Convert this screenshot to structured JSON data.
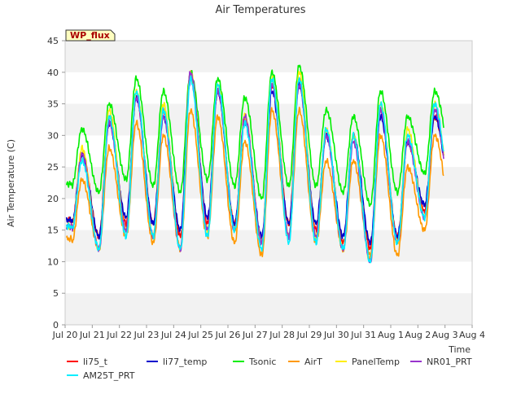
{
  "chart_data": {
    "type": "line",
    "title": "Air Temperatures",
    "xlabel": "Time",
    "ylabel": "Air Temperature (C)",
    "badge": "WP_flux",
    "ylim": [
      0,
      45
    ],
    "yticks": [
      0,
      5,
      10,
      15,
      20,
      25,
      30,
      35,
      40,
      45
    ],
    "xlim": [
      0,
      15
    ],
    "xticks": [
      {
        "pos": 0,
        "label": "Jul 20"
      },
      {
        "pos": 1,
        "label": "Jul 21"
      },
      {
        "pos": 2,
        "label": "Jul 22"
      },
      {
        "pos": 3,
        "label": "Jul 23"
      },
      {
        "pos": 4,
        "label": "Jul 24"
      },
      {
        "pos": 5,
        "label": "Jul 25"
      },
      {
        "pos": 6,
        "label": "Jul 26"
      },
      {
        "pos": 7,
        "label": "Jul 27"
      },
      {
        "pos": 8,
        "label": "Jul 28"
      },
      {
        "pos": 9,
        "label": "Jul 29"
      },
      {
        "pos": 10,
        "label": "Jul 30"
      },
      {
        "pos": 11,
        "label": "Jul 31"
      },
      {
        "pos": 12,
        "label": "Aug 1"
      },
      {
        "pos": 13,
        "label": "Aug 2"
      },
      {
        "pos": 14,
        "label": "Aug 3"
      },
      {
        "pos": 15,
        "label": "Aug 4"
      }
    ],
    "grid": "horizontal bands",
    "legend_position": "bottom",
    "days": [
      "Jul 20",
      "Jul 21",
      "Jul 22",
      "Jul 23",
      "Jul 24",
      "Jul 25",
      "Jul 26",
      "Jul 27",
      "Jul 28",
      "Jul 29",
      "Jul 30",
      "Jul 31",
      "Aug 1",
      "Aug 2",
      "Aug 3"
    ],
    "series": [
      {
        "name": "li75_t",
        "color": "#ff0000",
        "daily_max": [
          27,
          33,
          36,
          34,
          40,
          37,
          33,
          38,
          39,
          30,
          30,
          34,
          29,
          33
        ],
        "daily_min": [
          16,
          14,
          16,
          16,
          14,
          16,
          16,
          13,
          16,
          15,
          13,
          12,
          14,
          18,
          21
        ]
      },
      {
        "name": "li77_temp",
        "color": "#0000cc",
        "daily_max": [
          27,
          32,
          36,
          33,
          39,
          37,
          32,
          37,
          38,
          30,
          30,
          33,
          29,
          33
        ],
        "daily_min": [
          16,
          14,
          17,
          16,
          15,
          17,
          16,
          14,
          16,
          16,
          14,
          13,
          14,
          19,
          21
        ]
      },
      {
        "name": "Tsonic",
        "color": "#00ee00",
        "daily_max": [
          31,
          35,
          39,
          37,
          40,
          39,
          36,
          40,
          41,
          34,
          33,
          37,
          33,
          37
        ],
        "daily_min": [
          22,
          21,
          23,
          22,
          21,
          23,
          22,
          20,
          22,
          22,
          21,
          19,
          21,
          24,
          27
        ]
      },
      {
        "name": "AirT",
        "color": "#ff9900",
        "daily_max": [
          23,
          28,
          32,
          30,
          34,
          33,
          29,
          34,
          34,
          26,
          26,
          30,
          25,
          30
        ],
        "daily_min": [
          13,
          12,
          14,
          13,
          12,
          14,
          13,
          11,
          14,
          13,
          12,
          11,
          11,
          15,
          18
        ]
      },
      {
        "name": "PanelTemp",
        "color": "#ffee00",
        "daily_max": [
          28,
          34,
          37,
          35,
          40,
          38,
          33,
          39,
          40,
          31,
          30,
          35,
          31,
          35
        ],
        "daily_min": [
          15,
          12,
          15,
          14,
          12,
          15,
          15,
          13,
          14,
          14,
          12,
          10,
          13,
          17,
          20
        ]
      },
      {
        "name": "NR01_PRT",
        "color": "#9933cc",
        "daily_max": [
          27,
          32,
          36,
          33,
          40,
          37,
          33,
          38,
          38,
          30,
          29,
          34,
          29,
          34
        ],
        "daily_min": [
          15,
          12,
          15,
          14,
          12,
          15,
          15,
          13,
          14,
          14,
          12,
          10,
          13,
          17,
          20
        ]
      },
      {
        "name": "AM25T_PRT",
        "color": "#00eeff",
        "daily_max": [
          26,
          33,
          37,
          34,
          39,
          38,
          32,
          39,
          39,
          31,
          30,
          35,
          30,
          35
        ],
        "daily_min": [
          15,
          12,
          14,
          14,
          12,
          14,
          15,
          12,
          13,
          13,
          12,
          10,
          13,
          17,
          20
        ]
      }
    ]
  }
}
